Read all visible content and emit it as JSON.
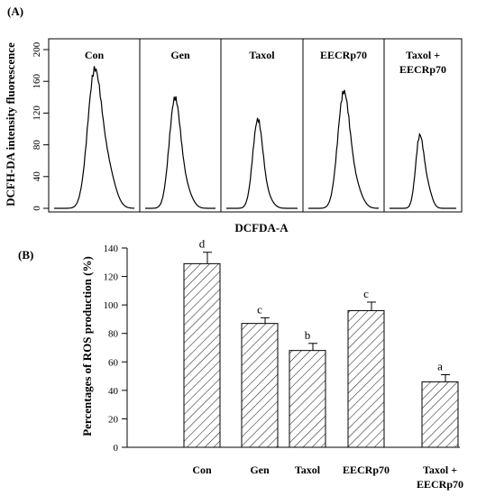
{
  "chart_data": [
    {
      "type": "line",
      "panel_label": "(A)",
      "ylabel": "DCFH-DA intensity fluorescence",
      "xlabel": "DCFDA-A",
      "ylim": [
        0,
        200
      ],
      "yticks": [
        "0",
        "40",
        "80",
        "120",
        "160",
        "200"
      ],
      "ytick_values": [
        0,
        40,
        80,
        120,
        160,
        200
      ],
      "panels": [
        {
          "label_lines": [
            "Con"
          ],
          "peak": 175
        },
        {
          "label_lines": [
            "Gen"
          ],
          "peak": 139
        },
        {
          "label_lines": [
            "Taxol"
          ],
          "peak": 112
        },
        {
          "label_lines": [
            "EECRp70"
          ],
          "peak": 147
        },
        {
          "label_lines": [
            "Taxol +",
            "EECRp70"
          ],
          "peak": 92
        }
      ]
    },
    {
      "type": "bar",
      "panel_label": "(B)",
      "ylabel": "Percentages of ROS production (%)",
      "ylim": [
        0,
        140
      ],
      "yticks": [
        "0",
        "20",
        "40",
        "60",
        "80",
        "100",
        "120",
        "140"
      ],
      "ytick_values": [
        0,
        20,
        40,
        60,
        80,
        100,
        120,
        140
      ],
      "categories": [
        [
          "Con"
        ],
        [
          "Gen"
        ],
        [
          "Taxol"
        ],
        [
          "EECRp70"
        ],
        [
          "Taxol +",
          "EECRp70"
        ]
      ],
      "values": [
        129,
        87,
        68,
        96,
        46
      ],
      "errors": [
        8,
        4,
        5,
        6,
        5
      ],
      "letters": [
        "d",
        "c",
        "b",
        "c",
        "a"
      ]
    }
  ]
}
